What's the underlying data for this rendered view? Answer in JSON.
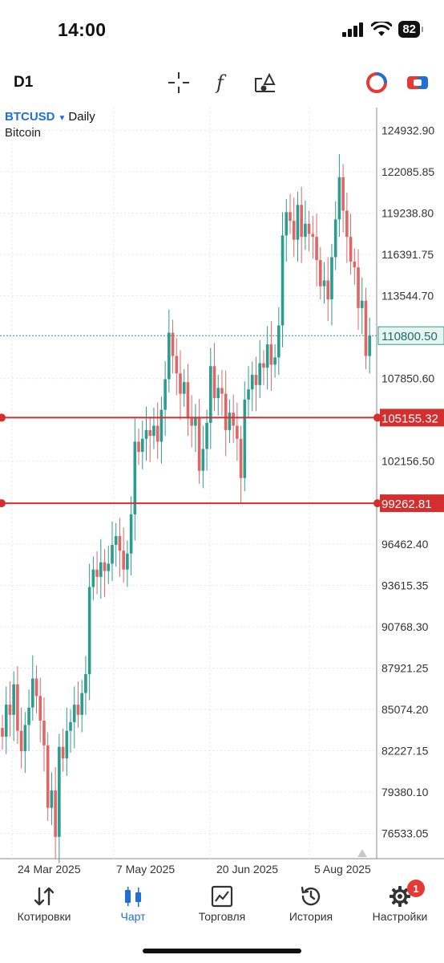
{
  "status": {
    "time": "14:00",
    "battery": "82"
  },
  "toolbar": {
    "timeframe": "D1"
  },
  "chart": {
    "symbol": "BTCUSD",
    "period": "Daily",
    "description": "Bitcoin",
    "current_price": "110800.50",
    "current_price_value": 110800.5,
    "hlines": [
      {
        "label": "105155.32",
        "value": 105155.32
      },
      {
        "label": "99262.81",
        "value": 99262.81
      }
    ],
    "y_ticks": [
      "124932.90",
      "122085.85",
      "119238.80",
      "116391.75",
      "113544.70",
      "107850.60",
      "102156.50",
      "96462.40",
      "93615.35",
      "90768.30",
      "87921.25",
      "85074.20",
      "82227.15",
      "79380.10",
      "76533.05"
    ],
    "x_ticks": [
      "24 Mar 2025",
      "7 May 2025",
      "20 Jun 2025",
      "5 Aug 2025"
    ],
    "colors": {
      "up": "#2a9d8f",
      "down": "#e06666",
      "hline": "#d32f2f",
      "grid": "#e6e6e6",
      "price_line": "#2a9d8f"
    }
  },
  "chart_data": {
    "type": "candlestick",
    "symbol": "BTCUSD",
    "period": "Daily",
    "ylim": [
      74800,
      126500
    ],
    "x_ticks": [
      "24 Mar 2025",
      "7 May 2025",
      "20 Jun 2025",
      "5 Aug 2025"
    ],
    "candles_close": [
      83200,
      85400,
      84700,
      86800,
      83600,
      82200,
      84000,
      85200,
      87200,
      86000,
      84300,
      82600,
      78300,
      79500,
      76300,
      82500,
      81700,
      83600,
      84200,
      85400,
      84700,
      86200,
      87500,
      93500,
      94700,
      94200,
      95200,
      94600,
      95100,
      96400,
      97000,
      96000,
      94700,
      95800,
      98500,
      103500,
      102800,
      103700,
      104300,
      103900,
      104600,
      103500,
      105700,
      107800,
      111000,
      109400,
      108200,
      106800,
      107600,
      105100,
      104600,
      105200,
      101500,
      103000,
      104800,
      108700,
      106500,
      107200,
      106800,
      104300,
      105500,
      104600,
      103700,
      101000,
      106400,
      107100,
      108100,
      107400,
      108900,
      108600,
      110200,
      108800,
      109300,
      111500,
      117700,
      119300,
      118700,
      117400,
      119800,
      117600,
      118500,
      117800,
      117600,
      116000,
      114200,
      114600,
      113300,
      116200,
      118800,
      121700,
      119400,
      117600,
      115900,
      115500,
      112700,
      113200,
      109400,
      110800
    ]
  },
  "nav": {
    "items": [
      {
        "label": "Котировки",
        "icon": "quotes-arrows-icon"
      },
      {
        "label": "Чарт",
        "icon": "chart-candles-icon"
      },
      {
        "label": "Торговля",
        "icon": "trade-chart-icon"
      },
      {
        "label": "История",
        "icon": "history-clock-icon"
      },
      {
        "label": "Настройки",
        "icon": "settings-gear-icon"
      }
    ],
    "settings_badge": "1"
  }
}
